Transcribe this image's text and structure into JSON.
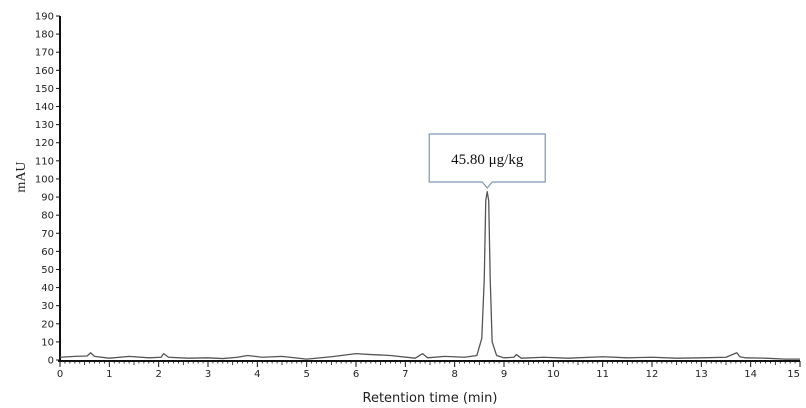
{
  "chart_data": {
    "type": "line",
    "title": "",
    "xlabel": "Retention time (min)",
    "ylabel": "mAU",
    "xlim": [
      0,
      15
    ],
    "ylim": [
      0,
      190
    ],
    "x_ticks": [
      0,
      1,
      2,
      3,
      4,
      5,
      6,
      7,
      8,
      9,
      10,
      11,
      12,
      13,
      14,
      15
    ],
    "x_tick_labels": [
      "0",
      "1",
      "2",
      "3",
      "4",
      "5",
      "6",
      "7",
      "8",
      "9",
      "10",
      "11",
      "12",
      "13",
      "14",
      "15"
    ],
    "y_ticks": [
      0,
      10,
      20,
      30,
      40,
      50,
      60,
      70,
      80,
      90,
      100,
      110,
      120,
      130,
      140,
      150,
      160,
      170,
      180,
      190
    ],
    "y_tick_labels": [
      "0",
      "10",
      "20",
      "30",
      "40",
      "50",
      "60",
      "70",
      "80",
      "90",
      "100",
      "110",
      "120",
      "130",
      "140",
      "150",
      "160",
      "170",
      "180",
      "190"
    ],
    "grid": false,
    "line_color": "#555555",
    "axis_color": "#111111",
    "annotation_box_color": "#7f96b3",
    "series": [
      {
        "x": [
          0,
          0.3,
          0.55,
          0.62,
          0.7,
          1.0,
          1.4,
          1.8,
          2.05,
          2.1,
          2.2,
          2.6,
          3.0,
          3.3,
          3.6,
          3.8,
          4.1,
          4.5,
          5.0,
          5.5,
          6.0,
          6.3,
          6.7,
          7.2,
          7.35,
          7.45,
          7.8,
          8.2,
          8.45,
          8.55,
          8.6,
          8.63,
          8.66,
          8.69,
          8.72,
          8.76,
          8.85,
          9.0,
          9.2,
          9.25,
          9.35,
          9.8,
          10.3,
          11.0,
          11.5,
          12.0,
          12.5,
          13.0,
          13.5,
          13.72,
          13.78,
          13.9,
          14.3,
          14.7,
          15.0
        ],
        "y": [
          1.5,
          2.0,
          2.2,
          4.0,
          2.0,
          1.0,
          2.0,
          1.2,
          1.5,
          3.5,
          1.5,
          1.0,
          1.2,
          0.8,
          1.5,
          2.5,
          1.5,
          2.0,
          0.5,
          1.8,
          3.5,
          3.0,
          2.5,
          1.0,
          3.5,
          1.2,
          2.0,
          1.5,
          2.5,
          12,
          45,
          88,
          93,
          88,
          45,
          10,
          2.5,
          1.2,
          1.5,
          3.0,
          1.0,
          1.5,
          1.0,
          1.8,
          1.2,
          1.5,
          1.0,
          1.2,
          1.5,
          4.0,
          1.8,
          1.2,
          1.0,
          0.5,
          0.5
        ]
      }
    ],
    "annotations": [
      {
        "text": "45.80 μg/kg",
        "x": 8.66,
        "y": 95
      }
    ]
  }
}
